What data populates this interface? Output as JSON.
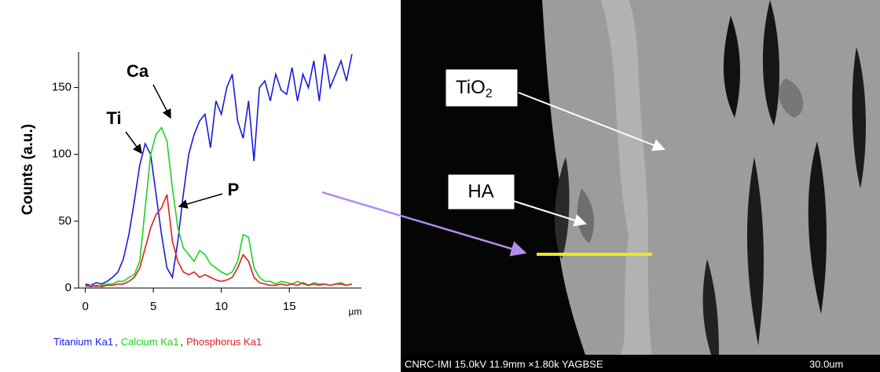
{
  "chart_data": {
    "type": "line",
    "y_label": "Counts (a.u.)",
    "x_unit": "µm",
    "xlim": [
      -0.5,
      20.3
    ],
    "ylim": [
      0,
      175
    ],
    "xticks": [
      0,
      5,
      10,
      15
    ],
    "yticks": [
      0,
      50,
      100,
      150
    ],
    "x": [
      0,
      0.4,
      0.8,
      1.2,
      1.6,
      2.0,
      2.4,
      2.8,
      3.2,
      3.6,
      4.0,
      4.4,
      4.8,
      5.2,
      5.6,
      6.0,
      6.4,
      6.8,
      7.2,
      7.6,
      8.0,
      8.4,
      8.8,
      9.2,
      9.6,
      10.0,
      10.4,
      10.8,
      11.2,
      11.6,
      12.0,
      12.4,
      12.8,
      13.2,
      13.6,
      14.0,
      14.4,
      14.8,
      15.2,
      15.6,
      16.0,
      16.4,
      16.8,
      17.2,
      17.6,
      18.0,
      18.4,
      18.8,
      19.2,
      19.6
    ],
    "series": [
      {
        "name": "Titanium Ka1",
        "color": "#1a1adc",
        "values": [
          3,
          2,
          4,
          3,
          5,
          8,
          12,
          22,
          40,
          65,
          92,
          108,
          100,
          70,
          40,
          15,
          8,
          35,
          70,
          100,
          115,
          125,
          130,
          105,
          140,
          130,
          150,
          160,
          125,
          112,
          140,
          95,
          150,
          155,
          140,
          160,
          148,
          145,
          165,
          140,
          160,
          150,
          170,
          140,
          175,
          150,
          160,
          170,
          155,
          175
        ]
      },
      {
        "name": "Calcium Ka1",
        "color": "#1ed21e",
        "values": [
          1,
          2,
          1,
          2,
          3,
          3,
          5,
          5,
          8,
          10,
          20,
          60,
          100,
          115,
          120,
          110,
          75,
          45,
          30,
          25,
          20,
          28,
          25,
          18,
          15,
          12,
          10,
          12,
          20,
          40,
          38,
          15,
          8,
          5,
          5,
          3,
          5,
          4,
          3,
          5,
          3,
          2,
          4,
          3,
          3,
          2,
          3,
          4,
          2,
          3
        ]
      },
      {
        "name": "Phosphorus Ka1",
        "color": "#e01e1e",
        "values": [
          2,
          1,
          2,
          1,
          2,
          2,
          3,
          3,
          5,
          8,
          15,
          30,
          45,
          55,
          60,
          70,
          35,
          20,
          12,
          10,
          12,
          8,
          10,
          8,
          6,
          5,
          6,
          8,
          15,
          25,
          20,
          8,
          4,
          3,
          2,
          2,
          3,
          2,
          3,
          2,
          4,
          2,
          3,
          2,
          3,
          2,
          3,
          3,
          2,
          3
        ]
      }
    ],
    "legend_separator": ",",
    "annotations": [
      "Ti",
      "Ca",
      "P"
    ]
  },
  "micrograph": {
    "label_tio": "TiO",
    "label_tio_sub": "2",
    "label_ha": "HA",
    "caption": "CNRC-IMI 15.0kV 11.9mm ×1.80k YAGBSE",
    "scale": "30.0um"
  }
}
